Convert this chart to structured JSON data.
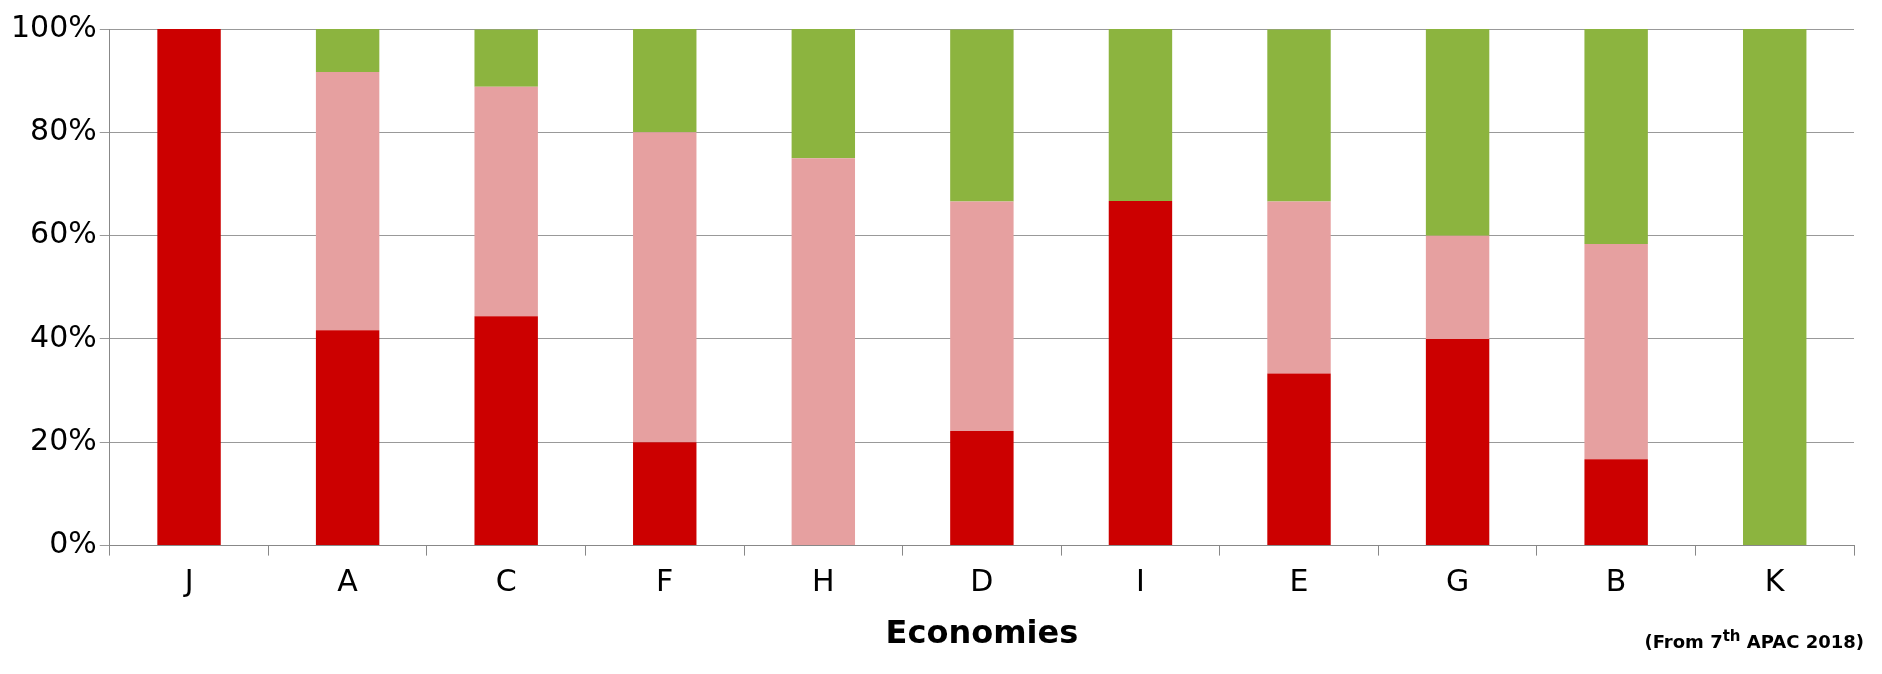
{
  "chart_data": {
    "type": "bar",
    "stacked": true,
    "xlabel": "Economies",
    "categories": [
      "J",
      "A",
      "C",
      "F",
      "H",
      "D",
      "I",
      "E",
      "G",
      "B",
      "K"
    ],
    "series": [
      {
        "color": "#cc0000",
        "values": [
          100,
          41.7,
          44.4,
          20,
          0,
          22.2,
          66.7,
          33.3,
          40,
          16.7,
          0
        ]
      },
      {
        "color": "#e6a0a0",
        "values": [
          0,
          50,
          44.4,
          60,
          75,
          44.4,
          0,
          33.3,
          20,
          41.7,
          0
        ]
      },
      {
        "color": "#8cb43f",
        "values": [
          0,
          8.3,
          11.1,
          20,
          25,
          33.3,
          33.3,
          33.3,
          40,
          41.7,
          100
        ]
      }
    ],
    "ylim": [
      0,
      100
    ],
    "yticks": [
      {
        "value": 0,
        "label": "0%"
      },
      {
        "value": 20,
        "label": "20%"
      },
      {
        "value": 40,
        "label": "40%"
      },
      {
        "value": 60,
        "label": "60%"
      },
      {
        "value": 80,
        "label": "80%"
      },
      {
        "value": 100,
        "label": "100%"
      }
    ],
    "grid": "y",
    "legend": false,
    "annotations": [
      "(From 7$^{th}$ APAC 2018)"
    ]
  }
}
